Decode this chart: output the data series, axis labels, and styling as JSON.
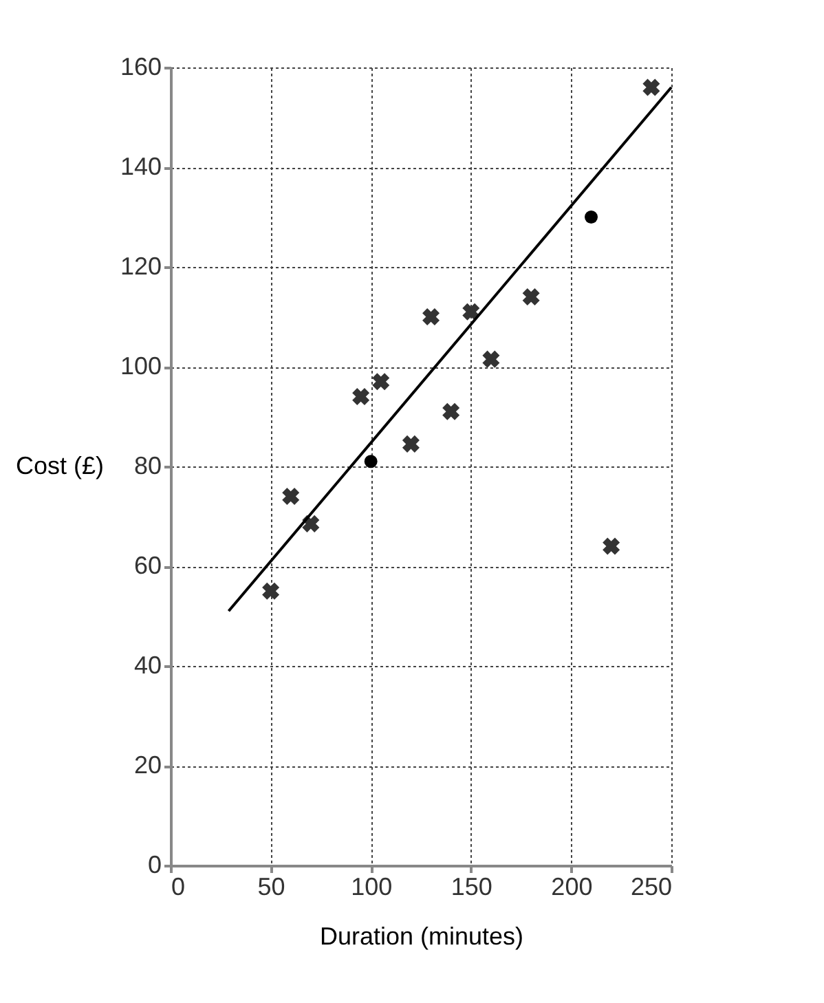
{
  "chart_data": {
    "type": "scatter",
    "xlabel": "Duration (minutes)",
    "ylabel": "Cost (£)",
    "xlim": [
      0,
      250
    ],
    "xticks": [
      0,
      50,
      100,
      150,
      200,
      250
    ],
    "ylim": [
      0,
      160
    ],
    "yticks": [
      0,
      20,
      40,
      60,
      80,
      100,
      120,
      140,
      160
    ],
    "grid": true,
    "series": [
      {
        "marker": "cross",
        "color": "#333333",
        "x": [
          50,
          60,
          70,
          95,
          105,
          120,
          130,
          140,
          150,
          160,
          180,
          220,
          240
        ],
        "values": [
          55,
          74,
          68.5,
          94,
          97,
          84.5,
          110,
          91,
          111,
          101.5,
          114,
          64,
          156
        ]
      },
      {
        "marker": "circle",
        "color": "#000000",
        "x": [
          100,
          210
        ],
        "values": [
          81,
          130
        ]
      },
      {
        "type": "line",
        "color": "#000000",
        "x": [
          29,
          250
        ],
        "values": [
          51,
          156
        ]
      }
    ]
  }
}
